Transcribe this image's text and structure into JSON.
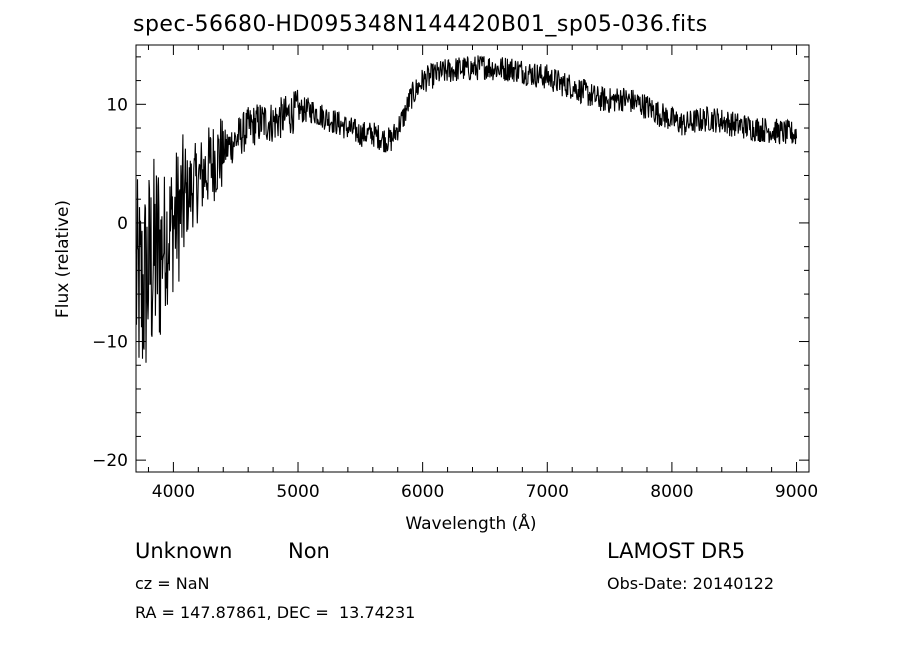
{
  "chart_data": {
    "type": "line",
    "title": "spec-56680-HD095348N144420B01_sp05-036.fits",
    "xlabel": "Wavelength (Å)",
    "ylabel": "Flux (relative)",
    "xlim": [
      3700,
      9100
    ],
    "ylim": [
      -21,
      15
    ],
    "xticks": [
      4000,
      5000,
      6000,
      7000,
      8000,
      9000
    ],
    "yticks": [
      -20,
      -10,
      0,
      10
    ],
    "grid": false,
    "series": [
      {
        "x": [
          3700,
          3750,
          3800,
          3850,
          3900,
          3950,
          4000,
          4050,
          4100,
          4150,
          4200,
          4300,
          4400,
          4500,
          4600,
          4700,
          4800,
          4900,
          5000,
          5100,
          5200,
          5300,
          5400,
          5500,
          5600,
          5700,
          5750,
          5800,
          5850,
          5900,
          6000,
          6100,
          6200,
          6300,
          6400,
          6500,
          6600,
          6700,
          6800,
          6900,
          7000,
          7100,
          7200,
          7300,
          7400,
          7500,
          7600,
          7700,
          7800,
          7900,
          8000,
          8100,
          8200,
          8300,
          8400,
          8500,
          8600,
          8700,
          8800,
          8900,
          9000
        ],
        "y": [
          -5,
          -6,
          -4,
          -3,
          -2,
          -1,
          0,
          1,
          2,
          3,
          3.5,
          5,
          6,
          7,
          8,
          8.5,
          8.5,
          9,
          9.5,
          9.5,
          9,
          8.5,
          8,
          7.5,
          7.5,
          7,
          7,
          8,
          9,
          10.5,
          12,
          12.5,
          12.8,
          13,
          13,
          13.2,
          13,
          13,
          12.8,
          12.5,
          12.3,
          11.8,
          11.5,
          11,
          10.5,
          10.3,
          10.5,
          10.2,
          9.8,
          9.2,
          8.7,
          8.3,
          8.6,
          8.8,
          8.6,
          8.3,
          8.1,
          7.9,
          7.8,
          7.6,
          7.5
        ]
      }
    ]
  },
  "info": {
    "class_text": "Unknown",
    "subclass_text": "Non",
    "survey": "LAMOST DR5",
    "cz": "cz = NaN",
    "obs_date": "Obs-Date: 20140122",
    "coords": "RA = 147.87861, DEC =  13.74231"
  }
}
